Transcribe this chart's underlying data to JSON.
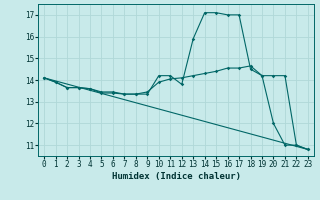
{
  "xlabel": "Humidex (Indice chaleur)",
  "ylabel": "",
  "background_color": "#c8eaea",
  "grid_color": "#b0d8d8",
  "line_color": "#006666",
  "xlim": [
    -0.5,
    23.5
  ],
  "ylim": [
    10.5,
    17.5
  ],
  "yticks": [
    11,
    12,
    13,
    14,
    15,
    16,
    17
  ],
  "xticks": [
    0,
    1,
    2,
    3,
    4,
    5,
    6,
    7,
    8,
    9,
    10,
    11,
    12,
    13,
    14,
    15,
    16,
    17,
    18,
    19,
    20,
    21,
    22,
    23
  ],
  "series": [
    {
      "x": [
        0,
        1,
        2,
        3,
        4,
        5,
        6,
        7,
        8,
        9,
        10,
        11,
        12,
        13,
        14,
        15,
        16,
        17,
        18,
        19,
        20,
        21,
        22,
        23
      ],
      "y": [
        14.1,
        13.9,
        13.65,
        13.65,
        13.6,
        13.4,
        13.4,
        13.35,
        13.35,
        13.35,
        14.2,
        14.2,
        13.8,
        15.9,
        17.1,
        17.1,
        17.0,
        17.0,
        14.5,
        14.2,
        12.0,
        11.0,
        11.0,
        10.8
      ],
      "marker": true
    },
    {
      "x": [
        0,
        1,
        2,
        3,
        4,
        5,
        6,
        7,
        8,
        9,
        10,
        11,
        12,
        13,
        14,
        15,
        16,
        17,
        18,
        19,
        20,
        21,
        22,
        23
      ],
      "y": [
        14.1,
        13.9,
        13.65,
        13.65,
        13.6,
        13.45,
        13.45,
        13.35,
        13.35,
        13.45,
        13.9,
        14.05,
        14.1,
        14.2,
        14.3,
        14.4,
        14.55,
        14.55,
        14.65,
        14.2,
        14.2,
        14.2,
        11.0,
        10.8
      ],
      "marker": true
    },
    {
      "x": [
        0,
        23
      ],
      "y": [
        14.1,
        10.8
      ],
      "marker": false
    }
  ]
}
